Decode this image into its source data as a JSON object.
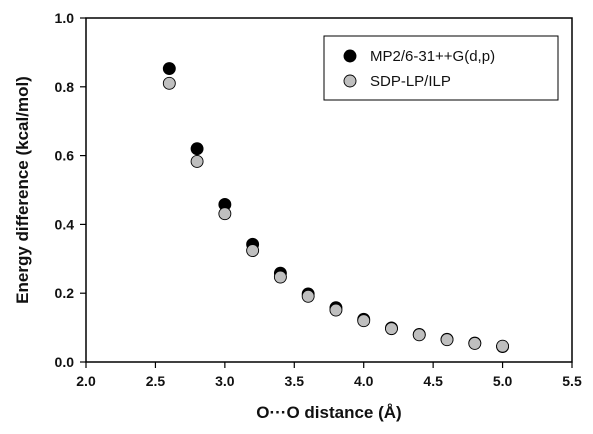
{
  "chart_data": {
    "type": "scatter",
    "title": "",
    "xlabel": "O···O distance (Å)",
    "ylabel": "Energy difference (kcal/mol)",
    "xlim": [
      2.0,
      5.5
    ],
    "ylim": [
      0.0,
      1.0
    ],
    "xticks": [
      2.0,
      2.5,
      3.0,
      3.5,
      4.0,
      4.5,
      5.0,
      5.5
    ],
    "yticks": [
      0.0,
      0.2,
      0.4,
      0.6,
      0.8,
      1.0
    ],
    "xtick_labels": [
      "2.0",
      "2.5",
      "3.0",
      "3.5",
      "4.0",
      "4.5",
      "5.0",
      "5.5"
    ],
    "ytick_labels": [
      "0.0",
      "0.2",
      "0.4",
      "0.6",
      "0.8",
      "1.0"
    ],
    "grid": false,
    "legend_position": "top-right",
    "series": [
      {
        "name": "MP2/6-31++G(d,p)",
        "color": "#000000",
        "marker": "filled-black-circle",
        "x": [
          2.6,
          2.8,
          3.0,
          3.2,
          3.4,
          3.6,
          3.8,
          4.0,
          4.2,
          4.4,
          4.6,
          4.8,
          5.0
        ],
        "y": [
          0.853,
          0.62,
          0.458,
          0.342,
          0.258,
          0.198,
          0.158,
          0.124,
          0.099,
          0.08,
          0.066,
          0.055,
          0.045
        ]
      },
      {
        "name": "SDP-LP/ILP",
        "color": "#bfbfbf",
        "marker": "gray-circle",
        "x": [
          2.6,
          2.8,
          3.0,
          3.2,
          3.4,
          3.6,
          3.8,
          4.0,
          4.2,
          4.4,
          4.6,
          4.8,
          5.0
        ],
        "y": [
          0.81,
          0.583,
          0.431,
          0.324,
          0.247,
          0.191,
          0.151,
          0.12,
          0.097,
          0.079,
          0.065,
          0.054,
          0.046
        ]
      }
    ]
  }
}
